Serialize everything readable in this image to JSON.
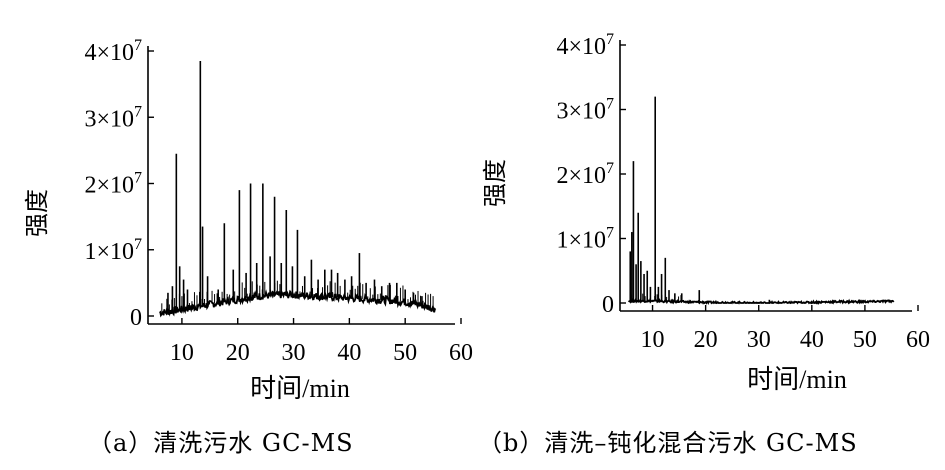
{
  "chart_data": [
    {
      "type": "line",
      "caption": "（a）清洗污水 GC-MS",
      "xlabel": "时间/min",
      "ylabel": "强度",
      "xlim": [
        5,
        60
      ],
      "ylim": [
        0,
        40000000
      ],
      "xticks": [
        "10",
        "20",
        "30",
        "40",
        "50",
        "60"
      ],
      "yticks": [
        "0",
        "1×10⁷",
        "2×10⁷",
        "3×10⁷",
        "4×10⁷"
      ],
      "baseline": [
        [
          6,
          500000
        ],
        [
          8,
          700000
        ],
        [
          10,
          1000000
        ],
        [
          12,
          1300000
        ],
        [
          14,
          1600000
        ],
        [
          16,
          1900000
        ],
        [
          18,
          2200000
        ],
        [
          20,
          2500000
        ],
        [
          22,
          2800000
        ],
        [
          24,
          3000000
        ],
        [
          26,
          3100000
        ],
        [
          28,
          3200000
        ],
        [
          30,
          3200000
        ],
        [
          32,
          3100000
        ],
        [
          34,
          3000000
        ],
        [
          36,
          2900000
        ],
        [
          38,
          2800000
        ],
        [
          40,
          2700000
        ],
        [
          42,
          2600000
        ],
        [
          44,
          2500000
        ],
        [
          46,
          2400000
        ],
        [
          48,
          2300000
        ],
        [
          50,
          2100000
        ],
        [
          52,
          1800000
        ],
        [
          54,
          1400000
        ],
        [
          55.5,
          1000000
        ]
      ],
      "peaks": [
        [
          7.5,
          3500000
        ],
        [
          8.3,
          4500000
        ],
        [
          9.0,
          24500000
        ],
        [
          9.6,
          7500000
        ],
        [
          10.3,
          5500000
        ],
        [
          11.0,
          4000000
        ],
        [
          13.3,
          38500000
        ],
        [
          13.7,
          13500000
        ],
        [
          14.6,
          6000000
        ],
        [
          16.5,
          4000000
        ],
        [
          17.6,
          14000000
        ],
        [
          19.2,
          7000000
        ],
        [
          20.3,
          19000000
        ],
        [
          21.5,
          6500000
        ],
        [
          22.3,
          20000000
        ],
        [
          23.4,
          8000000
        ],
        [
          24.5,
          20000000
        ],
        [
          25.8,
          9000000
        ],
        [
          26.6,
          18000000
        ],
        [
          27.8,
          8000000
        ],
        [
          28.7,
          16000000
        ],
        [
          29.8,
          7500000
        ],
        [
          30.7,
          13000000
        ],
        [
          32.0,
          6000000
        ],
        [
          33.2,
          8500000
        ],
        [
          34.4,
          5500000
        ],
        [
          35.6,
          7000000
        ],
        [
          36.8,
          7000000
        ],
        [
          37.9,
          6500000
        ],
        [
          39.2,
          5500000
        ],
        [
          40.4,
          6000000
        ],
        [
          41.8,
          9500000
        ],
        [
          43.0,
          5000000
        ],
        [
          44.5,
          5500000
        ],
        [
          45.8,
          4500000
        ],
        [
          47.2,
          5000000
        ],
        [
          48.5,
          5000000
        ],
        [
          50.0,
          4000000
        ],
        [
          51.5,
          3500000
        ],
        [
          53.0,
          3000000
        ]
      ]
    },
    {
      "type": "line",
      "caption": "（b）清洗–钝化混合污水 GC-MS",
      "xlabel": "时间/min",
      "ylabel": "强度",
      "xlim": [
        5,
        60
      ],
      "ylim": [
        0,
        40000000
      ],
      "xticks": [
        "10",
        "20",
        "30",
        "40",
        "50",
        "60"
      ],
      "yticks": [
        "0",
        "1×10⁷",
        "2×10⁷",
        "3×10⁷",
        "4×10⁷"
      ],
      "baseline": [
        [
          5.5,
          300000
        ],
        [
          10,
          300000
        ],
        [
          15,
          200000
        ],
        [
          20,
          100000
        ],
        [
          30,
          0
        ],
        [
          40,
          100000
        ],
        [
          45,
          200000
        ],
        [
          50,
          200000
        ],
        [
          55.5,
          300000
        ]
      ],
      "peaks": [
        [
          5.8,
          8000000
        ],
        [
          6.1,
          11000000
        ],
        [
          6.4,
          22000000
        ],
        [
          6.9,
          6000000
        ],
        [
          7.3,
          14000000
        ],
        [
          7.8,
          6500000
        ],
        [
          8.4,
          4500000
        ],
        [
          9.0,
          5000000
        ],
        [
          9.6,
          2500000
        ],
        [
          10.5,
          32000000
        ],
        [
          11.1,
          2500000
        ],
        [
          11.7,
          4500000
        ],
        [
          12.4,
          7000000
        ],
        [
          13.1,
          2000000
        ],
        [
          14.2,
          1500000
        ],
        [
          15.5,
          1500000
        ],
        [
          18.8,
          2000000
        ],
        [
          32.0,
          500000
        ]
      ]
    }
  ]
}
